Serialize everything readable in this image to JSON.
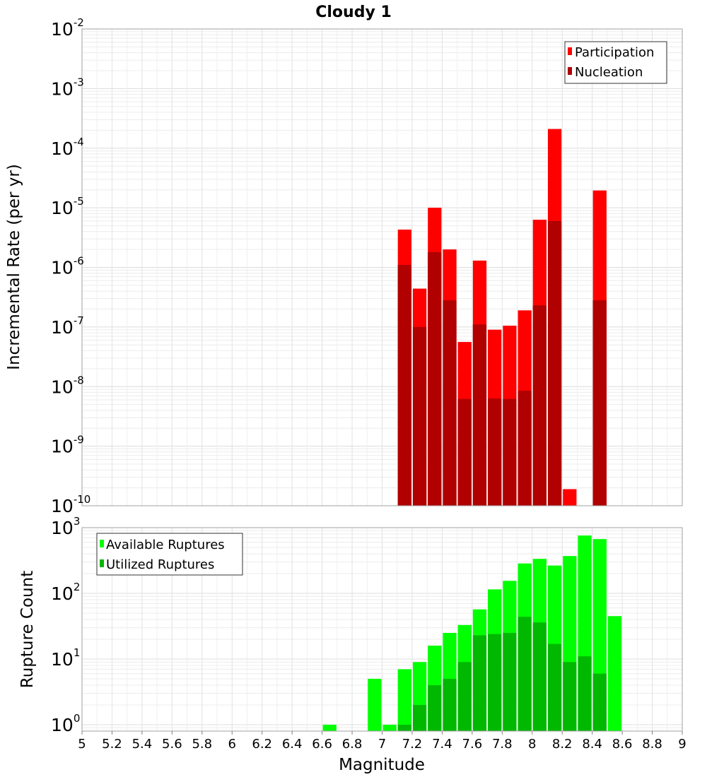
{
  "chart_data": [
    {
      "type": "bar",
      "title": "Cloudy 1",
      "xlabel": "",
      "ylabel": "Incremental Rate (per yr)",
      "xlim": [
        5,
        9
      ],
      "ylim": [
        1e-10,
        0.01
      ],
      "yscale": "log",
      "grid": true,
      "legend_position": "top-right",
      "ytick_labels": [
        {
          "base": "10",
          "exp": "-10"
        },
        {
          "base": "10",
          "exp": "-9"
        },
        {
          "base": "10",
          "exp": "-8"
        },
        {
          "base": "10",
          "exp": "-7"
        },
        {
          "base": "10",
          "exp": "-6"
        },
        {
          "base": "10",
          "exp": "-5"
        },
        {
          "base": "10",
          "exp": "-4"
        },
        {
          "base": "10",
          "exp": "-3"
        },
        {
          "base": "10",
          "exp": "-2"
        }
      ],
      "series": [
        {
          "name": "Participation",
          "color": "#ff0000",
          "x": [
            7.15,
            7.25,
            7.35,
            7.45,
            7.55,
            7.65,
            7.75,
            7.85,
            7.95,
            8.05,
            8.15,
            8.25,
            8.45
          ],
          "values": [
            4.3e-06,
            4.4e-07,
            1e-05,
            2e-06,
            5.6e-08,
            1.3e-06,
            9e-08,
            1.05e-07,
            1.9e-07,
            6.3e-06,
            0.00021,
            1.9e-10,
            1.95e-05
          ]
        },
        {
          "name": "Nucleation",
          "color": "#b00000",
          "x": [
            7.15,
            7.25,
            7.35,
            7.45,
            7.55,
            7.65,
            7.75,
            7.85,
            7.95,
            8.05,
            8.15,
            8.45
          ],
          "values": [
            1.1e-06,
            1e-07,
            1.8e-06,
            2.8e-07,
            6.2e-09,
            1.1e-07,
            6.3e-09,
            6.2e-09,
            8.5e-09,
            2.3e-07,
            6e-06,
            2.8e-07
          ]
        }
      ]
    },
    {
      "type": "bar",
      "title": "",
      "xlabel": "Magnitude",
      "ylabel": "Rupture Count",
      "xlim": [
        5,
        9
      ],
      "ylim": [
        0.8,
        1000
      ],
      "yscale": "log",
      "grid": true,
      "legend_position": "top-left",
      "xtick_labels": [
        "5",
        "5.2",
        "5.4",
        "5.6",
        "5.8",
        "6",
        "6.2",
        "6.4",
        "6.6",
        "6.8",
        "7",
        "7.2",
        "7.4",
        "7.6",
        "7.8",
        "8",
        "8.2",
        "8.4",
        "8.6",
        "8.8",
        "9"
      ],
      "ytick_labels": [
        {
          "base": "10",
          "exp": "0"
        },
        {
          "base": "10",
          "exp": "1"
        },
        {
          "base": "10",
          "exp": "2"
        },
        {
          "base": "10",
          "exp": "3"
        }
      ],
      "series": [
        {
          "name": "Available Ruptures",
          "color": "#00ff00",
          "x": [
            6.65,
            6.95,
            7.05,
            7.15,
            7.25,
            7.35,
            7.45,
            7.55,
            7.65,
            7.75,
            7.85,
            7.95,
            8.05,
            8.15,
            8.25,
            8.35,
            8.45,
            8.55
          ],
          "values": [
            1,
            5,
            1,
            7,
            9,
            16,
            25,
            33,
            57,
            115,
            155,
            285,
            335,
            265,
            370,
            760,
            670,
            45
          ]
        },
        {
          "name": "Utilized Ruptures",
          "color": "#00b800",
          "x": [
            7.15,
            7.25,
            7.35,
            7.45,
            7.55,
            7.65,
            7.75,
            7.85,
            7.95,
            8.05,
            8.15,
            8.25,
            8.35,
            8.45
          ],
          "values": [
            1,
            2,
            4,
            5,
            9,
            23,
            24,
            25,
            44,
            36,
            17,
            9,
            11,
            6
          ]
        }
      ]
    }
  ]
}
